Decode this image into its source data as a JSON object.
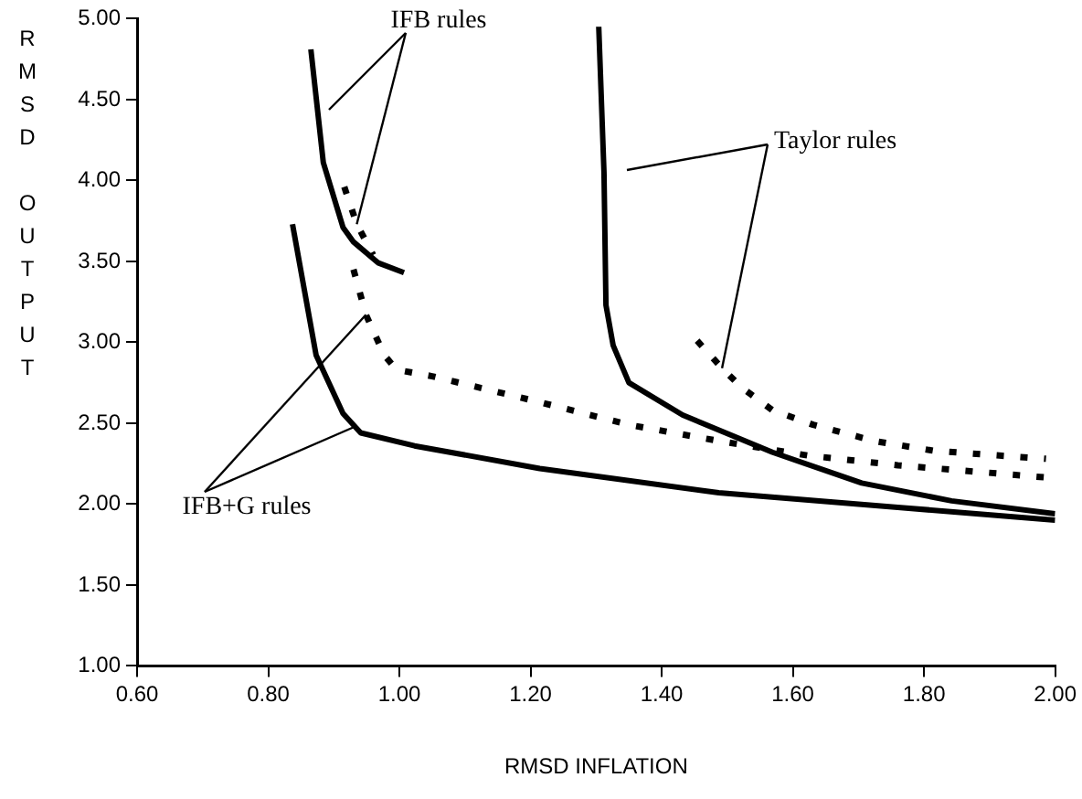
{
  "chart_data": {
    "type": "line",
    "xlabel": "RMSD INFLATION",
    "ylabel": "RMSD OUTPUT",
    "xlim": [
      0.6,
      2.0
    ],
    "ylim": [
      1.0,
      5.0
    ],
    "xticks": [
      {
        "value": 0.6,
        "label": "0.60"
      },
      {
        "value": 0.8,
        "label": "0.80"
      },
      {
        "value": 1.0,
        "label": "1.00"
      },
      {
        "value": 1.2,
        "label": "1.20"
      },
      {
        "value": 1.4,
        "label": "1.40"
      },
      {
        "value": 1.6,
        "label": "1.60"
      },
      {
        "value": 1.8,
        "label": "1.80"
      },
      {
        "value": 2.0,
        "label": "2.00"
      }
    ],
    "yticks": [
      {
        "value": 1.0,
        "label": "1.00"
      },
      {
        "value": 1.5,
        "label": "1.50"
      },
      {
        "value": 2.0,
        "label": "2.00"
      },
      {
        "value": 2.5,
        "label": "2.50"
      },
      {
        "value": 3.0,
        "label": "3.00"
      },
      {
        "value": 3.5,
        "label": "3.50"
      },
      {
        "value": 4.0,
        "label": "4.00"
      },
      {
        "value": 4.5,
        "label": "4.50"
      },
      {
        "value": 5.0,
        "label": "5.00"
      }
    ],
    "grid": false,
    "legend": false,
    "marker": "none",
    "series": [
      {
        "color": "#000000",
        "line_style": "solid",
        "x": [
          0.865,
          0.884,
          0.914,
          0.93,
          0.968,
          1.007
        ],
        "values": [
          4.81,
          4.11,
          3.71,
          3.62,
          3.49,
          3.43
        ]
      },
      {
        "color": "#000000",
        "line_style": "dotted",
        "x": [
          0.916,
          0.935,
          0.96
        ],
        "values": [
          3.96,
          3.73,
          3.54
        ]
      },
      {
        "color": "#000000",
        "line_style": "solid",
        "x": [
          0.837,
          0.873,
          0.914,
          0.941,
          1.023,
          1.214,
          1.487,
          1.76,
          2.0
        ],
        "values": [
          3.73,
          2.92,
          2.56,
          2.44,
          2.36,
          2.22,
          2.07,
          1.98,
          1.9
        ]
      },
      {
        "color": "#000000",
        "line_style": "dotted",
        "x": [
          0.93,
          0.949,
          0.977,
          0.996,
          1.05,
          1.214,
          1.35,
          1.487,
          1.623,
          1.76,
          1.85,
          2.0
        ],
        "values": [
          3.45,
          3.17,
          2.92,
          2.83,
          2.79,
          2.63,
          2.49,
          2.39,
          2.3,
          2.24,
          2.21,
          2.16
        ]
      },
      {
        "color": "#000000",
        "line_style": "solid",
        "x": [
          1.304,
          1.312,
          1.315,
          1.326,
          1.35,
          1.432,
          1.569,
          1.705,
          1.842,
          2.0
        ],
        "values": [
          4.95,
          4.05,
          3.23,
          2.98,
          2.75,
          2.55,
          2.32,
          2.13,
          2.02,
          1.94
        ]
      },
      {
        "color": "#000000",
        "line_style": "dotted",
        "x": [
          1.454,
          1.492,
          1.522,
          1.569,
          1.631,
          1.724,
          1.814,
          1.915,
          1.986
        ],
        "values": [
          3.01,
          2.84,
          2.72,
          2.58,
          2.49,
          2.39,
          2.33,
          2.3,
          2.28
        ]
      }
    ],
    "annotations": [
      {
        "text": "IFB rules",
        "x": 0.935,
        "y": 3.73
      },
      {
        "text": "Taylor rules",
        "x": 1.492,
        "y": 2.84
      },
      {
        "text": "IFB+G rules",
        "x": 0.949,
        "y": 3.17
      }
    ]
  }
}
